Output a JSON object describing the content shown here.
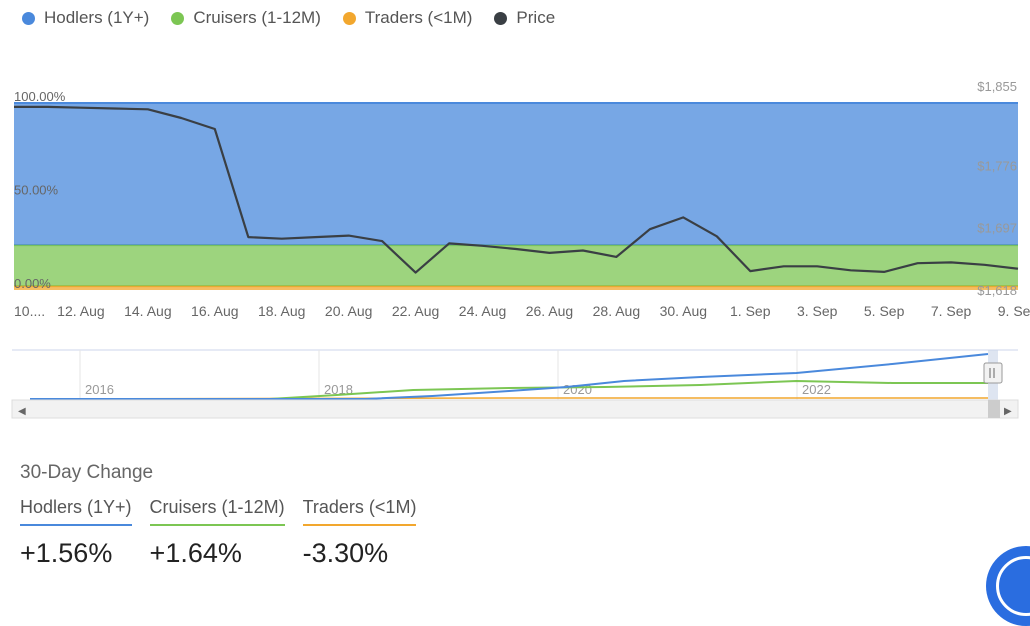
{
  "legend": [
    {
      "label": "Hodlers (1Y+)",
      "color": "#4a89dc"
    },
    {
      "label": "Cruisers (1-12M)",
      "color": "#7cc653"
    },
    {
      "label": "Traders (<1M)",
      "color": "#f2a72e"
    },
    {
      "label": "Price",
      "color": "#3a3f44"
    }
  ],
  "watermark": "IntoTheBlock",
  "chart_data": {
    "type": "area",
    "stacked": true,
    "x": [
      "10 Aug",
      "11 Aug",
      "12 Aug",
      "13 Aug",
      "14 Aug",
      "15 Aug",
      "16 Aug",
      "17 Aug",
      "18 Aug",
      "19 Aug",
      "20 Aug",
      "21 Aug",
      "22 Aug",
      "23 Aug",
      "24 Aug",
      "25 Aug",
      "26 Aug",
      "27 Aug",
      "28 Aug",
      "29 Aug",
      "30 Aug",
      "31 Aug",
      "1 Sep",
      "2 Sep",
      "3 Sep",
      "4 Sep",
      "5 Sep",
      "6 Sep",
      "7 Sep",
      "8 Sep",
      "9 Sep"
    ],
    "x_tick_labels": [
      "10....",
      "12. Aug",
      "14. Aug",
      "16. Aug",
      "18. Aug",
      "20. Aug",
      "22. Aug",
      "24. Aug",
      "26. Aug",
      "28. Aug",
      "30. Aug",
      "1. Sep",
      "3. Sep",
      "5. Sep",
      "7. Sep",
      "9. Sep"
    ],
    "series": [
      {
        "name": "Traders (<1M)",
        "axis": "left",
        "color": "#f2a72e",
        "values": [
          2.1,
          2.1,
          2.1,
          2.1,
          2.1,
          2.1,
          2.1,
          2.1,
          2.1,
          2.1,
          2.1,
          2.1,
          2.1,
          2.1,
          2.1,
          2.1,
          2.1,
          2.1,
          2.1,
          2.1,
          2.1,
          2.1,
          2.1,
          2.1,
          2.1,
          2.1,
          2.1,
          2.1,
          2.1,
          2.1,
          2.1
        ]
      },
      {
        "name": "Cruisers (1-12M)",
        "axis": "left",
        "color": "#7cc653",
        "values": [
          21.9,
          21.9,
          21.9,
          21.9,
          21.9,
          21.9,
          21.9,
          21.9,
          21.9,
          21.9,
          21.9,
          21.9,
          21.9,
          21.9,
          21.9,
          21.9,
          21.9,
          21.9,
          21.9,
          21.9,
          21.9,
          21.9,
          21.9,
          21.9,
          21.9,
          21.9,
          21.9,
          21.9,
          21.9,
          21.9,
          21.9
        ]
      },
      {
        "name": "Hodlers (1Y+)",
        "axis": "left",
        "color": "#4a89dc",
        "values": [
          76,
          76,
          76,
          76,
          76,
          76,
          76,
          76,
          76,
          76,
          76,
          76,
          76,
          76,
          76,
          76,
          76,
          76,
          76,
          76,
          76,
          76,
          76,
          76,
          76,
          76,
          76,
          76,
          76,
          76,
          76
        ]
      },
      {
        "name": "Price",
        "axis": "right",
        "type": "line",
        "color": "#3a3f44",
        "values": [
          1850,
          1850,
          1849,
          1848,
          1847,
          1836,
          1822,
          1685,
          1683,
          1685,
          1687,
          1680,
          1640,
          1677,
          1674,
          1670,
          1665,
          1668,
          1660,
          1695,
          1710,
          1686,
          1642,
          1648,
          1648,
          1643,
          1641,
          1652,
          1653,
          1650,
          1645
        ]
      }
    ],
    "y_left": {
      "ticks": [
        "100.00%",
        "50.00%",
        "0.00%"
      ],
      "ylim": [
        0,
        100
      ]
    },
    "y_right": {
      "ticks": [
        "$1,855",
        "$1,776",
        "$1,697",
        "$1,618"
      ],
      "ylim": [
        1618,
        1855
      ]
    },
    "legend_position": "top-left"
  },
  "navigator": {
    "year_labels": [
      "2016",
      "2018",
      "2020",
      "2022"
    ],
    "scroll_left_arrow": "◀",
    "scroll_right_arrow": "▶"
  },
  "changes": {
    "title": "30-Day Change",
    "items": [
      {
        "label": "Hodlers (1Y+)",
        "value": "+1.56%",
        "color": "#4a89dc"
      },
      {
        "label": "Cruisers (1-12M)",
        "value": "+1.64%",
        "color": "#7cc653"
      },
      {
        "label": "Traders (<1M)",
        "value": "-3.30%",
        "color": "#f2a72e"
      }
    ]
  }
}
